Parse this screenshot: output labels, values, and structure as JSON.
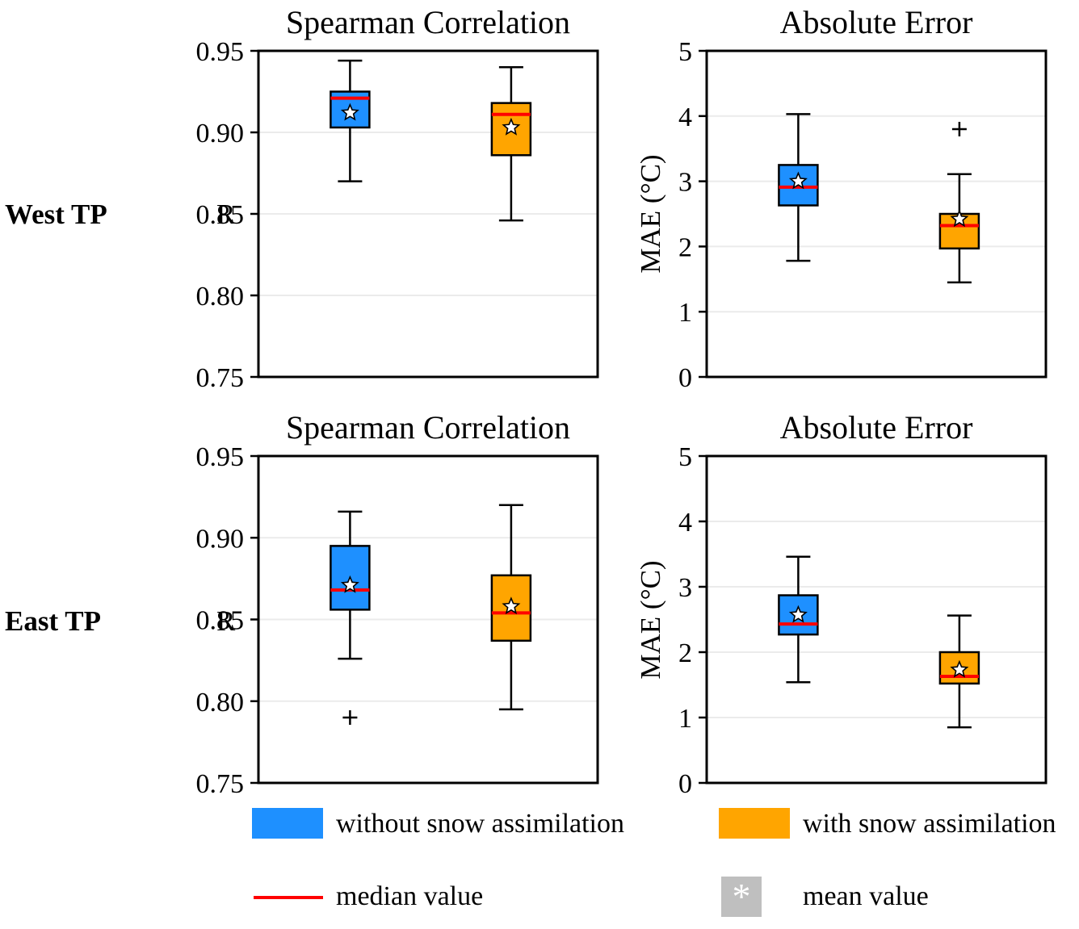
{
  "figure": {
    "background": "#ffffff"
  },
  "colors": {
    "without": "#1E90FF",
    "with": "#FFA500",
    "median": "#FF0000",
    "box_edge": "#000000",
    "grid": "#EBEBEB",
    "mean_fill": "#FFFFFF",
    "legend_mean_box": "#BFBFBF"
  },
  "rows": [
    {
      "label": "West TP"
    },
    {
      "label": "East TP"
    }
  ],
  "legend": {
    "without_label": "without snow assimilation",
    "with_label": "with snow assimilation",
    "median_label": "median value",
    "mean_label": "mean value",
    "mean_marker": "*"
  },
  "chart_data": [
    {
      "type": "boxplot",
      "row": "West TP",
      "title": "Spearman Correlation",
      "ylabel": "R",
      "ylim": [
        0.75,
        0.95
      ],
      "yticks": [
        0.75,
        0.8,
        0.85,
        0.9,
        0.95
      ],
      "ytick_labels": [
        "0.75",
        "0.80",
        "0.85",
        "0.90",
        "0.95"
      ],
      "grid": true,
      "series": [
        {
          "name": "without snow assimilation",
          "color_key": "without",
          "whisker_low": 0.87,
          "q1": 0.903,
          "median": 0.921,
          "q3": 0.925,
          "whisker_high": 0.944,
          "mean": 0.912,
          "outliers": []
        },
        {
          "name": "with snow assimilation",
          "color_key": "with",
          "whisker_low": 0.846,
          "q1": 0.886,
          "median": 0.911,
          "q3": 0.918,
          "whisker_high": 0.94,
          "mean": 0.903,
          "outliers": []
        }
      ]
    },
    {
      "type": "boxplot",
      "row": "West TP",
      "title": "Absolute Error",
      "ylabel": "MAE (°C)",
      "ylim": [
        0,
        5
      ],
      "yticks": [
        0,
        1,
        2,
        3,
        4,
        5
      ],
      "ytick_labels": [
        "0",
        "1",
        "2",
        "3",
        "4",
        "5"
      ],
      "grid": true,
      "series": [
        {
          "name": "without snow assimilation",
          "color_key": "without",
          "whisker_low": 1.78,
          "q1": 2.63,
          "median": 2.91,
          "q3": 3.25,
          "whisker_high": 4.03,
          "mean": 3.0,
          "outliers": []
        },
        {
          "name": "with snow assimilation",
          "color_key": "with",
          "whisker_low": 1.45,
          "q1": 1.97,
          "median": 2.32,
          "q3": 2.5,
          "whisker_high": 3.11,
          "mean": 2.42,
          "outliers": [
            3.8
          ]
        }
      ]
    },
    {
      "type": "boxplot",
      "row": "East TP",
      "title": "Spearman Correlation",
      "ylabel": "R",
      "ylim": [
        0.75,
        0.95
      ],
      "yticks": [
        0.75,
        0.8,
        0.85,
        0.9,
        0.95
      ],
      "ytick_labels": [
        "0.75",
        "0.80",
        "0.85",
        "0.90",
        "0.95"
      ],
      "grid": true,
      "series": [
        {
          "name": "without snow assimilation",
          "color_key": "without",
          "whisker_low": 0.826,
          "q1": 0.856,
          "median": 0.868,
          "q3": 0.895,
          "whisker_high": 0.916,
          "mean": 0.871,
          "outliers": [
            0.79
          ]
        },
        {
          "name": "with snow assimilation",
          "color_key": "with",
          "whisker_low": 0.795,
          "q1": 0.837,
          "median": 0.854,
          "q3": 0.877,
          "whisker_high": 0.92,
          "mean": 0.858,
          "outliers": []
        }
      ]
    },
    {
      "type": "boxplot",
      "row": "East TP",
      "title": "Absolute Error",
      "ylabel": "MAE (°C)",
      "ylim": [
        0,
        5
      ],
      "yticks": [
        0,
        1,
        2,
        3,
        4,
        5
      ],
      "ytick_labels": [
        "0",
        "1",
        "2",
        "3",
        "4",
        "5"
      ],
      "grid": true,
      "series": [
        {
          "name": "without snow assimilation",
          "color_key": "without",
          "whisker_low": 1.54,
          "q1": 2.27,
          "median": 2.43,
          "q3": 2.87,
          "whisker_high": 3.46,
          "mean": 2.57,
          "outliers": []
        },
        {
          "name": "with snow assimilation",
          "color_key": "with",
          "whisker_low": 0.85,
          "q1": 1.52,
          "median": 1.63,
          "q3": 2.0,
          "whisker_high": 2.56,
          "mean": 1.73,
          "outliers": []
        }
      ]
    }
  ]
}
